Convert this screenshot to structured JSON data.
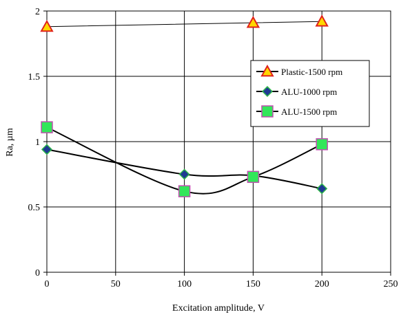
{
  "chart_data": {
    "type": "line",
    "title": "",
    "xlabel": "Excitation amplitude, V",
    "ylabel": "Ra, µm",
    "xlim": [
      0,
      250
    ],
    "ylim": [
      0,
      2
    ],
    "xticks": [
      0,
      50,
      100,
      150,
      200,
      250
    ],
    "yticks": [
      0,
      0.5,
      1,
      1.5,
      2
    ],
    "xtick_labels": [
      "0",
      "50",
      "100",
      "150",
      "200",
      "250"
    ],
    "ytick_labels": [
      "0",
      "0.5",
      "1",
      "1.5",
      "2"
    ],
    "grid": true,
    "legend_position": "right",
    "series": [
      {
        "name": "Plastic-1500 rpm",
        "marker": "triangle",
        "marker_color": "#FFD700",
        "marker_edge": "#E0201B",
        "line": "straight",
        "x": [
          0,
          150,
          200
        ],
        "y": [
          1.88,
          1.91,
          1.92
        ]
      },
      {
        "name": "ALU-1000 rpm",
        "marker": "diamond",
        "marker_color": "#1F3A93",
        "marker_edge": "#2FB84A",
        "line": "smooth",
        "x": [
          0,
          100,
          150,
          200
        ],
        "y": [
          0.94,
          0.75,
          0.74,
          0.64
        ]
      },
      {
        "name": "ALU-1500 rpm",
        "marker": "square",
        "marker_color": "#33E65A",
        "marker_edge": "#C04FB0",
        "line": "smooth",
        "x": [
          0,
          100,
          150,
          200
        ],
        "y": [
          1.11,
          0.62,
          0.73,
          0.98
        ]
      }
    ]
  }
}
